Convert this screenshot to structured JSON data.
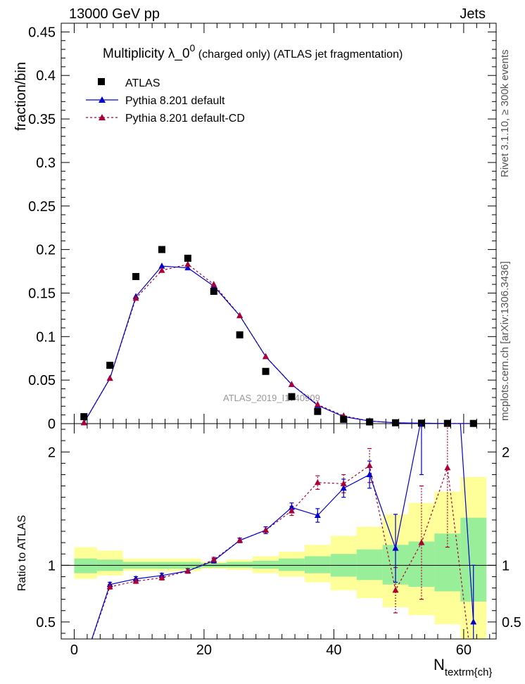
{
  "header": {
    "left": "13000 GeV pp",
    "right": "Jets"
  },
  "side_text": {
    "rivet": "Rivet 3.1.10, ≥ 300k events",
    "mcplots": "mcplots.cern.ch [arXiv:1306.3436]"
  },
  "watermark": "ATLAS_2019_I1740909",
  "legend": {
    "atlas": "ATLAS",
    "default": "Pythia 8.201 default",
    "cd": "Pythia 8.201 default-CD"
  },
  "colors": {
    "data": "#000000",
    "default": "#0000cc",
    "cd": "#aa0033",
    "band_inner": "#99ee99",
    "band_outer": "#ffff99"
  },
  "chart_data": [
    {
      "type": "scatter",
      "title_main": "Multiplicity  λ_0",
      "title_sup": "0",
      "title_rest": " (charged only) (ATLAS jet fragmentation)",
      "ylabel": "fraction/bin",
      "xlim": [
        -2,
        65
      ],
      "ylim": [
        0,
        0.46
      ],
      "yticks": [
        "0",
        "0.05",
        "0.1",
        "0.15",
        "0.2",
        "0.25",
        "0.3",
        "0.35",
        "0.4",
        "0.45"
      ],
      "x": [
        1.5,
        5.5,
        9.5,
        13.5,
        17.5,
        21.5,
        25.5,
        29.5,
        33.5,
        37.5,
        41.5,
        45.5,
        49.5,
        53.5,
        57.5,
        61.5
      ],
      "series": [
        {
          "name": "ATLAS",
          "values": [
            0.008,
            0.067,
            0.169,
            0.2,
            0.19,
            0.152,
            0.102,
            0.06,
            0.031,
            0.014,
            0.005,
            0.002,
            0.001,
            0.0005,
            0.0003,
            0.0002
          ]
        },
        {
          "name": "Pythia 8.201 default",
          "values": [
            0.001,
            0.052,
            0.146,
            0.181,
            0.179,
            0.158,
            0.124,
            0.077,
            0.045,
            0.021,
            0.008,
            0.003,
            0.001,
            0.0005,
            0.0002,
            0.0001
          ]
        },
        {
          "name": "Pythia 8.201 default-CD",
          "values": [
            0.001,
            0.052,
            0.144,
            0.176,
            0.183,
            0.16,
            0.124,
            0.077,
            0.045,
            0.022,
            0.009,
            0.003,
            0.001,
            0.0005,
            0.0002,
            0.0001
          ]
        }
      ]
    },
    {
      "type": "line",
      "ylabel": "Ratio to ATLAS",
      "xlabel": "N",
      "xlabel_sub": "textrm{ch}",
      "xlim": [
        -2,
        65
      ],
      "ylim": [
        0.35,
        2.25
      ],
      "xticks": [
        "0",
        "20",
        "40",
        "60"
      ],
      "yticks": [
        "0.5",
        "1",
        "2"
      ],
      "x": [
        1.5,
        5.5,
        9.5,
        13.5,
        17.5,
        21.5,
        25.5,
        29.5,
        33.5,
        37.5,
        41.5,
        45.5,
        49.5,
        53.5,
        57.5,
        61.5
      ],
      "band_inner": [
        [
          0,
          3.5,
          0.93,
          1.06
        ],
        [
          3.5,
          7.5,
          0.95,
          1.05
        ],
        [
          7.5,
          19.5,
          0.97,
          1.03
        ],
        [
          19.5,
          23.5,
          0.98,
          1.02
        ],
        [
          23.5,
          27.5,
          0.98,
          1.03
        ],
        [
          27.5,
          31.5,
          0.97,
          1.04
        ],
        [
          31.5,
          35.5,
          0.95,
          1.06
        ],
        [
          35.5,
          39.5,
          0.93,
          1.08
        ],
        [
          39.5,
          43.5,
          0.9,
          1.1
        ],
        [
          43.5,
          47.5,
          0.87,
          1.14
        ],
        [
          47.5,
          51.5,
          0.83,
          1.18
        ],
        [
          51.5,
          55.5,
          0.81,
          1.21
        ],
        [
          55.5,
          59.5,
          0.77,
          1.28
        ],
        [
          59.5,
          63.5,
          0.68,
          1.42
        ]
      ],
      "band_outer": [
        [
          0,
          3.5,
          0.88,
          1.16
        ],
        [
          3.5,
          7.5,
          0.91,
          1.13
        ],
        [
          7.5,
          11.5,
          0.95,
          1.06
        ],
        [
          11.5,
          19.5,
          0.95,
          1.06
        ],
        [
          19.5,
          23.5,
          0.97,
          1.03
        ],
        [
          23.5,
          27.5,
          0.96,
          1.05
        ],
        [
          27.5,
          31.5,
          0.93,
          1.08
        ],
        [
          31.5,
          35.5,
          0.9,
          1.12
        ],
        [
          35.5,
          39.5,
          0.85,
          1.18
        ],
        [
          39.5,
          43.5,
          0.78,
          1.26
        ],
        [
          43.5,
          47.5,
          0.71,
          1.34
        ],
        [
          47.5,
          51.5,
          0.63,
          1.45
        ],
        [
          51.5,
          55.5,
          0.56,
          1.55
        ],
        [
          55.5,
          59.5,
          0.48,
          1.65
        ],
        [
          59.5,
          63.5,
          0.35,
          1.78
        ]
      ],
      "series": [
        {
          "name": "Pythia 8.201 default",
          "values": [
            0.14,
            0.83,
            0.88,
            0.91,
            0.95,
            1.04,
            1.22,
            1.31,
            1.51,
            1.44,
            1.68,
            1.8,
            1.15,
            2.3,
            4.0,
            0.5
          ],
          "err": [
            0.0,
            0.02,
            0.02,
            0.02,
            0.02,
            0.02,
            0.02,
            0.03,
            0.04,
            0.06,
            0.08,
            0.12,
            0.3,
            0.5,
            1.0,
            0.5
          ]
        },
        {
          "name": "Pythia 8.201 default-CD",
          "values": [
            0.14,
            0.81,
            0.86,
            0.89,
            0.95,
            1.05,
            1.22,
            1.31,
            1.48,
            1.73,
            1.72,
            1.88,
            0.78,
            1.2,
            1.86,
            0.0
          ],
          "err": [
            0.0,
            0.02,
            0.02,
            0.02,
            0.02,
            0.02,
            0.02,
            0.03,
            0.04,
            0.06,
            0.08,
            0.15,
            0.2,
            0.5,
            0.7,
            0.0
          ]
        }
      ]
    }
  ]
}
